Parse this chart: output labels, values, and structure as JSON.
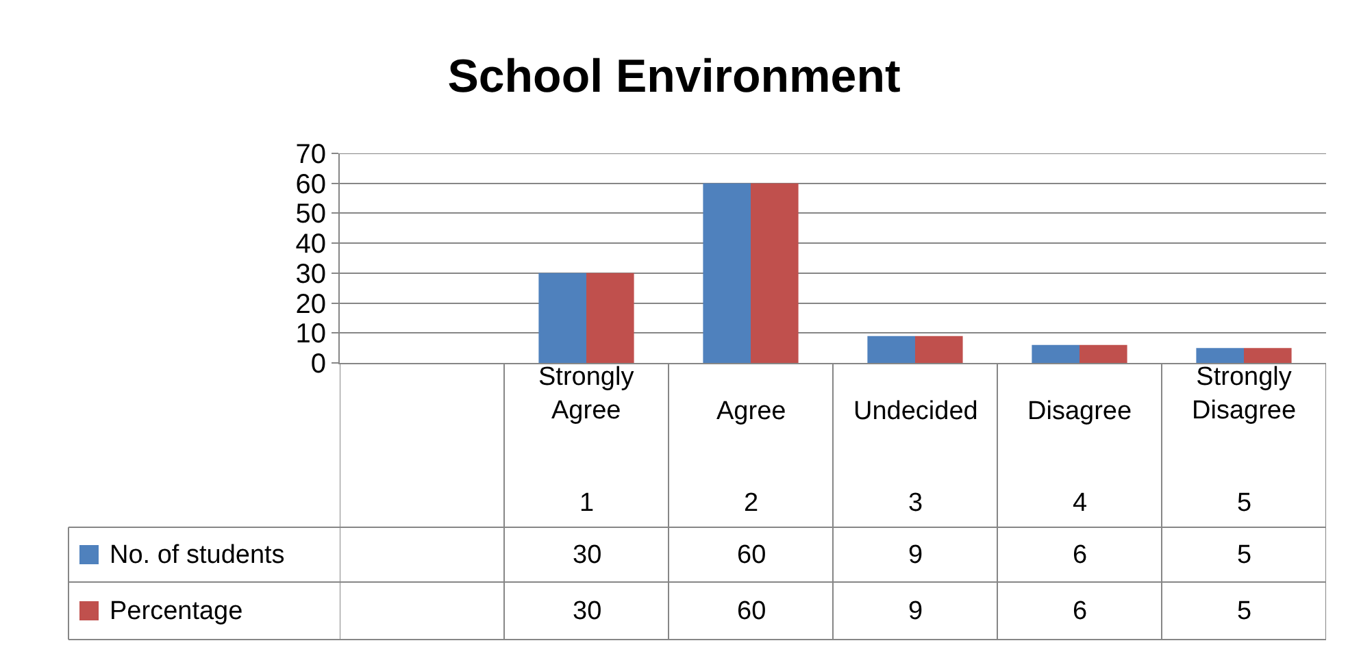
{
  "chart_data": {
    "type": "bar",
    "title": "School Environment",
    "categories": [
      null,
      "Strongly Agree",
      "Agree",
      "Undecided",
      "Disagree",
      "Strongly Disagree"
    ],
    "series": [
      {
        "name": "No. of students",
        "color": "#4f81bd",
        "values": [
          null,
          30,
          60,
          9,
          6,
          5
        ]
      },
      {
        "name": "Percentage",
        "color": "#c0504d",
        "values": [
          null,
          30,
          60,
          9,
          6,
          5
        ]
      }
    ],
    "annotations": [
      "1",
      "2",
      "3",
      "4",
      "5"
    ],
    "ylim": [
      0,
      70
    ],
    "yticks": [
      0,
      10,
      20,
      30,
      40,
      50,
      60,
      70
    ],
    "grid": "y",
    "legend": "bottom left",
    "data_labels": true
  }
}
